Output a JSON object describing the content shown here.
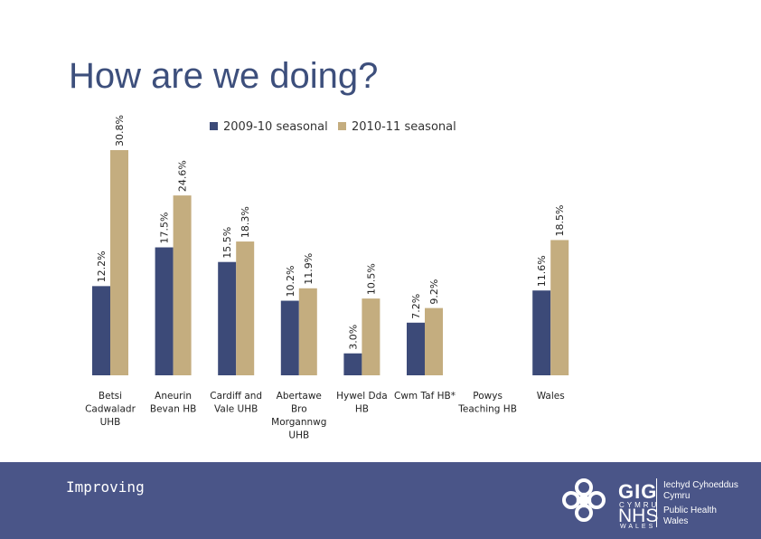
{
  "slide": {
    "title": "How are we doing?",
    "footer_text": "Improving"
  },
  "logo": {
    "gig": "GIG",
    "cymru": "CYMRU",
    "nhs": "NHS",
    "wales": "WALES",
    "org_line1": "Iechyd Cyhoeddus",
    "org_line2": "Cymru",
    "org_line3": "Public Health",
    "org_line4": "Wales"
  },
  "colors": {
    "title": "#3d4f7c",
    "series_2009": "#3c4a78",
    "series_2010": "#c4ad7f",
    "footer_bg": "#4a5588"
  },
  "chart_data": {
    "type": "bar",
    "title": "",
    "xlabel": "",
    "ylabel": "",
    "ylim": [
      0,
      32
    ],
    "grid": false,
    "legend_position": "top",
    "categories": [
      [
        "Betsi",
        "Cadwaladr",
        "UHB"
      ],
      [
        "Aneurin",
        "Bevan HB"
      ],
      [
        "Cardiff and",
        "Vale UHB"
      ],
      [
        "Abertawe",
        "Bro",
        "Morgannwg",
        "UHB"
      ],
      [
        "Hywel Dda",
        "HB"
      ],
      [
        "Cwm Taf HB*"
      ],
      [
        "Powys",
        "Teaching HB"
      ],
      [
        "Wales"
      ]
    ],
    "series": [
      {
        "name": "2009-10 seasonal",
        "values": [
          12.2,
          17.5,
          15.5,
          10.2,
          3.0,
          7.2,
          null,
          11.6
        ],
        "labels": [
          "12.2%",
          "17.5%",
          "15.5%",
          "10.2%",
          "3.0%",
          "7.2%",
          "",
          "11.6%"
        ]
      },
      {
        "name": "2010-11 seasonal",
        "values": [
          30.8,
          24.6,
          18.3,
          11.9,
          10.5,
          9.2,
          null,
          18.5
        ],
        "labels": [
          "30.8%",
          "24.6%",
          "18.3%",
          "11.9%",
          "10.5%",
          "9.2%",
          "",
          "18.5%"
        ]
      }
    ]
  }
}
